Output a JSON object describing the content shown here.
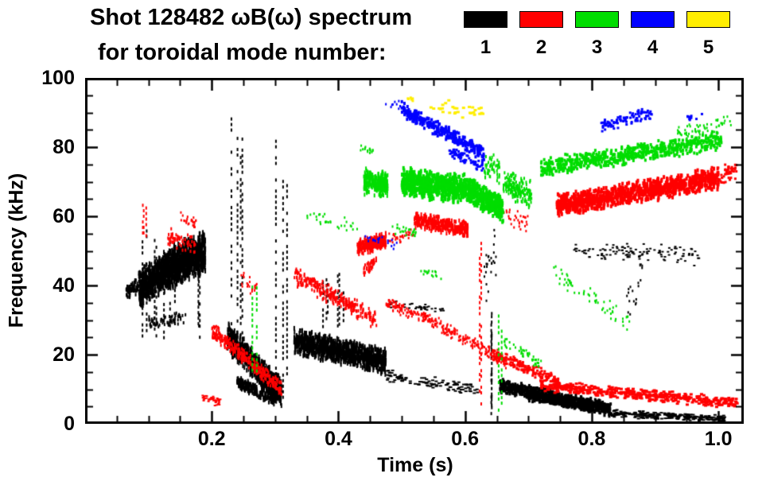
{
  "title": {
    "line1": "Shot 128482 ωB(ω) spectrum",
    "line2": "for toroidal mode number:"
  },
  "legend": [
    {
      "label": "1",
      "color": "#000000"
    },
    {
      "label": "2",
      "color": "#ff0000"
    },
    {
      "label": "3",
      "color": "#00dd00"
    },
    {
      "label": "4",
      "color": "#0000ff"
    },
    {
      "label": "5",
      "color": "#ffee00"
    }
  ],
  "chart_data": {
    "type": "scatter",
    "title": "Shot 128482 ωB(ω) spectrum for toroidal mode number: 1 2 3 4 5",
    "xlabel": "Time (s)",
    "ylabel": "Frequency (kHz)",
    "xlim": [
      0,
      1.04
    ],
    "ylim": [
      0,
      100
    ],
    "grid": false,
    "legend_position": "top-right",
    "x_ticks": [
      {
        "value": 0.2,
        "label": "0.2"
      },
      {
        "value": 0.4,
        "label": "0.4"
      },
      {
        "value": 0.6,
        "label": "0.6"
      },
      {
        "value": 0.8,
        "label": "0.8"
      },
      {
        "value": 1.0,
        "label": "1.0"
      }
    ],
    "y_ticks": [
      {
        "value": 0,
        "label": "0"
      },
      {
        "value": 20,
        "label": "20"
      },
      {
        "value": 40,
        "label": "40"
      },
      {
        "value": 60,
        "label": "60"
      },
      {
        "value": 80,
        "label": "80"
      },
      {
        "value": 100,
        "label": "100"
      }
    ],
    "x_minor_step": 0.05,
    "y_minor_step": 5,
    "series": [
      {
        "name": "mode 1",
        "color": "#000000",
        "clusters": [
          {
            "type": "band",
            "t0": 0.065,
            "t1": 0.085,
            "f0": 38,
            "f1": 40,
            "spread": 2.5,
            "n": 80,
            "dash": [
              2,
              4
            ]
          },
          {
            "type": "band",
            "t0": 0.085,
            "t1": 0.125,
            "f0": 39,
            "f1": 44,
            "spread": 6,
            "n": 500,
            "dash": [
              2,
              6
            ]
          },
          {
            "type": "band",
            "t0": 0.125,
            "t1": 0.19,
            "f0": 44,
            "f1": 50,
            "spread": 6.5,
            "n": 850,
            "dash": [
              2,
              7
            ]
          },
          {
            "type": "vstreak",
            "t0": 0.09,
            "t1": 0.185,
            "fmin": 24,
            "fmax": 57,
            "n": 10
          },
          {
            "type": "band",
            "t0": 0.1,
            "t1": 0.16,
            "f0": 29,
            "f1": 31,
            "spread": 2,
            "n": 60,
            "dash": [
              2,
              4
            ]
          },
          {
            "type": "vstreak",
            "t0": 0.225,
            "t1": 0.25,
            "fmin": 12,
            "fmax": 92,
            "n": 4
          },
          {
            "type": "band",
            "t0": 0.225,
            "t1": 0.31,
            "f0": 25,
            "f1": 9,
            "spread": 4.5,
            "n": 900,
            "dash": [
              2,
              6
            ]
          },
          {
            "type": "band",
            "t0": 0.24,
            "t1": 0.3,
            "f0": 12,
            "f1": 7,
            "spread": 2,
            "n": 220,
            "dash": [
              2,
              5
            ]
          },
          {
            "type": "vstreak",
            "t0": 0.298,
            "t1": 0.322,
            "fmin": 6,
            "fmax": 88,
            "n": 3
          },
          {
            "type": "band",
            "t0": 0.33,
            "t1": 0.475,
            "f0": 24,
            "f1": 18,
            "spread": 4,
            "n": 1100,
            "dash": [
              2,
              6
            ]
          },
          {
            "type": "vstreak",
            "t0": 0.35,
            "t1": 0.43,
            "fmin": 26,
            "fmax": 46,
            "n": 6
          },
          {
            "type": "band",
            "t0": 0.475,
            "t1": 0.62,
            "f0": 14,
            "f1": 10,
            "spread": 2,
            "n": 110,
            "dash": [
              4,
              2
            ]
          },
          {
            "type": "vstreak",
            "t0": 0.632,
            "t1": 0.646,
            "fmin": 1,
            "fmax": 34,
            "n": 3
          },
          {
            "type": "band",
            "t0": 0.63,
            "t1": 0.65,
            "f0": 42,
            "f1": 52,
            "spread": 10,
            "n": 25,
            "dash": [
              2,
              3
            ]
          },
          {
            "type": "band",
            "t0": 0.655,
            "t1": 0.83,
            "f0": 11,
            "f1": 4,
            "spread": 2.2,
            "n": 800,
            "dash": [
              3,
              4
            ]
          },
          {
            "type": "band",
            "t0": 0.7,
            "t1": 0.8,
            "f0": 8,
            "f1": 5,
            "spread": 1.5,
            "n": 300,
            "dash": [
              3,
              4
            ]
          },
          {
            "type": "band",
            "t0": 0.83,
            "t1": 1.01,
            "f0": 3,
            "f1": 1.5,
            "spread": 1.2,
            "n": 260,
            "dash": [
              4,
              2
            ]
          },
          {
            "type": "band",
            "t0": 0.77,
            "t1": 0.97,
            "f0": 50,
            "f1": 49,
            "spread": 3.5,
            "n": 120,
            "dash": [
              3,
              2
            ]
          },
          {
            "type": "band",
            "t0": 0.48,
            "t1": 0.57,
            "f0": 35,
            "f1": 33,
            "spread": 1.5,
            "n": 40,
            "dash": [
              3,
              2
            ]
          },
          {
            "type": "band",
            "t0": 0.855,
            "t1": 0.88,
            "f0": 32,
            "f1": 44,
            "spread": 7,
            "n": 18,
            "dash": [
              2,
              3
            ]
          }
        ]
      },
      {
        "name": "mode 2",
        "color": "#ff0000",
        "clusters": [
          {
            "type": "vstreak",
            "t0": 0.085,
            "t1": 0.1,
            "fmin": 54,
            "fmax": 64,
            "n": 3
          },
          {
            "type": "band",
            "t0": 0.13,
            "t1": 0.175,
            "f0": 54,
            "f1": 52,
            "spread": 3,
            "n": 60,
            "dash": [
              2,
              4
            ]
          },
          {
            "type": "band",
            "t0": 0.15,
            "t1": 0.175,
            "f0": 60,
            "f1": 58,
            "spread": 2,
            "n": 25,
            "dash": [
              2,
              3
            ]
          },
          {
            "type": "band",
            "t0": 0.185,
            "t1": 0.215,
            "f0": 8,
            "f1": 6,
            "spread": 1.5,
            "n": 40,
            "dash": [
              3,
              2
            ]
          },
          {
            "type": "band",
            "t0": 0.2,
            "t1": 0.31,
            "f0": 27,
            "f1": 10,
            "spread": 2.5,
            "n": 320,
            "dash": [
              2,
              4
            ]
          },
          {
            "type": "band",
            "t0": 0.245,
            "t1": 0.275,
            "f0": 42,
            "f1": 38,
            "spread": 3,
            "n": 22,
            "dash": [
              2,
              3
            ]
          },
          {
            "type": "band",
            "t0": 0.33,
            "t1": 0.46,
            "f0": 43,
            "f1": 30,
            "spread": 3,
            "n": 280,
            "dash": [
              2,
              4
            ]
          },
          {
            "type": "band",
            "t0": 0.43,
            "t1": 0.475,
            "f0": 51,
            "f1": 53,
            "spread": 2.5,
            "n": 280,
            "dash": [
              2,
              5
            ]
          },
          {
            "type": "band",
            "t0": 0.44,
            "t1": 0.46,
            "f0": 44,
            "f1": 47,
            "spread": 2,
            "n": 40,
            "dash": [
              2,
              4
            ]
          },
          {
            "type": "band",
            "t0": 0.475,
            "t1": 0.555,
            "f0": 35,
            "f1": 29,
            "spread": 2,
            "n": 130,
            "dash": [
              2,
              3
            ]
          },
          {
            "type": "band",
            "t0": 0.48,
            "t1": 0.52,
            "f0": 53,
            "f1": 55,
            "spread": 2,
            "n": 30,
            "dash": [
              2,
              3
            ]
          },
          {
            "type": "band",
            "t0": 0.52,
            "t1": 0.605,
            "f0": 59,
            "f1": 56,
            "spread": 2.5,
            "n": 340,
            "dash": [
              2,
              5
            ]
          },
          {
            "type": "band",
            "t0": 0.555,
            "t1": 0.665,
            "f0": 29,
            "f1": 18,
            "spread": 2.2,
            "n": 170,
            "dash": [
              2,
              3
            ]
          },
          {
            "type": "vstreak",
            "t0": 0.622,
            "t1": 0.633,
            "fmin": 1,
            "fmax": 58,
            "n": 2
          },
          {
            "type": "band",
            "t0": 0.645,
            "t1": 0.75,
            "f0": 20,
            "f1": 12,
            "spread": 2,
            "n": 170,
            "dash": [
              3,
              3
            ]
          },
          {
            "type": "band",
            "t0": 0.66,
            "t1": 0.7,
            "f0": 60,
            "f1": 58,
            "spread": 3,
            "n": 30,
            "dash": [
              2,
              3
            ]
          },
          {
            "type": "band",
            "t0": 0.72,
            "t1": 1.03,
            "f0": 11,
            "f1": 6,
            "spread": 1.8,
            "n": 460,
            "dash": [
              4,
              3
            ]
          },
          {
            "type": "band",
            "t0": 0.745,
            "t1": 1.0,
            "f0": 63,
            "f1": 71,
            "spread": 3.5,
            "n": 950,
            "dash": [
              3,
              5
            ]
          },
          {
            "type": "band",
            "t0": 0.96,
            "t1": 1.03,
            "f0": 70,
            "f1": 73,
            "spread": 3,
            "n": 80,
            "dash": [
              3,
              3
            ]
          }
        ]
      },
      {
        "name": "mode 3",
        "color": "#00dd00",
        "clusters": [
          {
            "type": "vstreak",
            "t0": 0.262,
            "t1": 0.275,
            "fmin": 10,
            "fmax": 46,
            "n": 2
          },
          {
            "type": "band",
            "t0": 0.35,
            "t1": 0.43,
            "f0": 60,
            "f1": 57,
            "spread": 2.5,
            "n": 30,
            "dash": [
              2,
              3
            ]
          },
          {
            "type": "band",
            "t0": 0.435,
            "t1": 0.455,
            "f0": 80,
            "f1": 79,
            "spread": 1.5,
            "n": 16,
            "dash": [
              2,
              3
            ]
          },
          {
            "type": "band",
            "t0": 0.44,
            "t1": 0.478,
            "f0": 70,
            "f1": 69,
            "spread": 4,
            "n": 280,
            "dash": [
              2,
              5
            ]
          },
          {
            "type": "band",
            "t0": 0.485,
            "t1": 0.525,
            "f0": 57,
            "f1": 55,
            "spread": 2,
            "n": 25,
            "dash": [
              2,
              3
            ]
          },
          {
            "type": "band",
            "t0": 0.5,
            "t1": 0.6,
            "f0": 70,
            "f1": 68,
            "spread": 4.5,
            "n": 650,
            "dash": [
              3,
              5
            ]
          },
          {
            "type": "band",
            "t0": 0.53,
            "t1": 0.565,
            "f0": 44,
            "f1": 43,
            "spread": 1.5,
            "n": 16,
            "dash": [
              2,
              3
            ]
          },
          {
            "type": "band",
            "t0": 0.6,
            "t1": 0.66,
            "f0": 68,
            "f1": 62,
            "spread": 4,
            "n": 380,
            "dash": [
              3,
              5
            ]
          },
          {
            "type": "band",
            "t0": 0.63,
            "t1": 0.655,
            "f0": 75,
            "f1": 73,
            "spread": 5,
            "n": 50,
            "dash": [
              2,
              4
            ]
          },
          {
            "type": "vstreak",
            "t0": 0.653,
            "t1": 0.663,
            "fmin": 1,
            "fmax": 32,
            "n": 2
          },
          {
            "type": "band",
            "t0": 0.66,
            "t1": 0.705,
            "f0": 70,
            "f1": 66,
            "spread": 4.5,
            "n": 180,
            "dash": [
              2,
              4
            ]
          },
          {
            "type": "band",
            "t0": 0.66,
            "t1": 0.72,
            "f0": 24,
            "f1": 17,
            "spread": 2,
            "n": 45,
            "dash": [
              2,
              3
            ]
          },
          {
            "type": "band",
            "t0": 0.72,
            "t1": 1.005,
            "f0": 74,
            "f1": 82,
            "spread": 3,
            "n": 620,
            "dash": [
              3,
              4
            ]
          },
          {
            "type": "band",
            "t0": 0.74,
            "t1": 0.86,
            "f0": 44,
            "f1": 29,
            "spread": 3,
            "n": 60,
            "dash": [
              2,
              3
            ]
          },
          {
            "type": "band",
            "t0": 0.93,
            "t1": 1.02,
            "f0": 83,
            "f1": 87,
            "spread": 3,
            "n": 60,
            "dash": [
              2,
              3
            ]
          }
        ]
      },
      {
        "name": "mode 4",
        "color": "#0000ff",
        "clusters": [
          {
            "type": "band",
            "t0": 0.44,
            "t1": 0.5,
            "f0": 54,
            "f1": 52,
            "spread": 2.5,
            "n": 20,
            "dash": [
              2,
              3
            ]
          },
          {
            "type": "band",
            "t0": 0.47,
            "t1": 0.5,
            "f0": 93,
            "f1": 92,
            "spread": 1.5,
            "n": 10,
            "dash": [
              2,
              3
            ]
          },
          {
            "type": "band",
            "t0": 0.5,
            "t1": 0.63,
            "f0": 91,
            "f1": 78,
            "spread": 2.5,
            "n": 310,
            "dash": [
              3,
              4
            ]
          },
          {
            "type": "band",
            "t0": 0.575,
            "t1": 0.63,
            "f0": 79,
            "f1": 74,
            "spread": 1.8,
            "n": 80,
            "dash": [
              3,
              3
            ]
          },
          {
            "type": "band",
            "t0": 0.815,
            "t1": 0.895,
            "f0": 86,
            "f1": 90,
            "spread": 2,
            "n": 95,
            "dash": [
              3,
              3
            ]
          },
          {
            "type": "band",
            "t0": 0.95,
            "t1": 0.975,
            "f0": 88,
            "f1": 89,
            "spread": 1.5,
            "n": 10,
            "dash": [
              3,
              3
            ]
          }
        ]
      },
      {
        "name": "mode 5",
        "color": "#ffee00",
        "clusters": [
          {
            "type": "band",
            "t0": 0.5,
            "t1": 0.52,
            "f0": 95,
            "f1": 94,
            "spread": 1,
            "n": 6,
            "dash": [
              3,
              3
            ]
          },
          {
            "type": "band",
            "t0": 0.545,
            "t1": 0.63,
            "f0": 92,
            "f1": 90,
            "spread": 2.5,
            "n": 30,
            "dash": [
              4,
              3
            ]
          }
        ]
      }
    ]
  }
}
